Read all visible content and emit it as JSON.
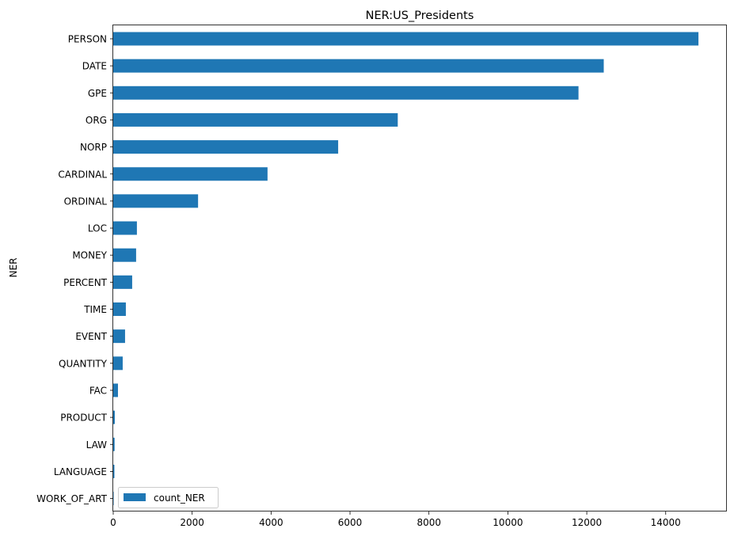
{
  "chart_data": {
    "type": "bar",
    "orientation": "horizontal",
    "title": "NER:US_Presidents",
    "xlabel": "",
    "ylabel": "NER",
    "categories": [
      "PERSON",
      "DATE",
      "GPE",
      "ORG",
      "NORP",
      "CARDINAL",
      "ORDINAL",
      "LOC",
      "MONEY",
      "PERCENT",
      "TIME",
      "EVENT",
      "QUANTITY",
      "FAC",
      "PRODUCT",
      "LAW",
      "LANGUAGE",
      "WORK_OF_ART"
    ],
    "series": [
      {
        "name": "count_NER",
        "color": "#1f77b4",
        "values": [
          14830,
          12430,
          11790,
          7210,
          5700,
          3910,
          2150,
          600,
          580,
          480,
          320,
          300,
          240,
          120,
          40,
          35,
          30,
          5
        ]
      }
    ],
    "xlim": [
      0,
      15550
    ],
    "xticks": [
      0,
      2000,
      4000,
      6000,
      8000,
      10000,
      12000,
      14000
    ],
    "xtick_labels": [
      "0",
      "2000",
      "4000",
      "6000",
      "8000",
      "10000",
      "12000",
      "14000"
    ],
    "grid": false,
    "legend": {
      "position": "lower-left",
      "entries": [
        "count_NER"
      ]
    }
  }
}
